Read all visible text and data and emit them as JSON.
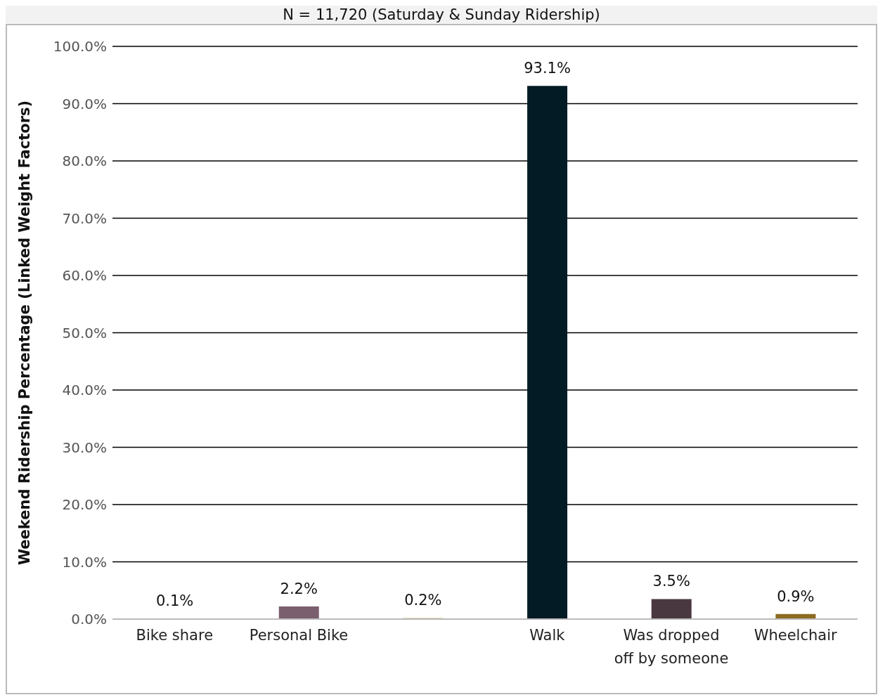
{
  "chart_data": {
    "type": "bar",
    "title": "N = 11,720 (Saturday & Sunday Ridership)",
    "ylabel": "Weekend Ridership Percentage (Linked Weight Factors)",
    "categories": [
      "Bike share",
      "Personal Bike",
      null,
      "Walk",
      "Was dropped off by someone",
      "Wheelchair"
    ],
    "values": [
      0.1,
      2.2,
      0.2,
      93.1,
      3.5,
      0.9
    ],
    "colors": [
      "#5b7b8c",
      "#7a5f6e",
      "#d8cfa6",
      "#021b24",
      "#4a3840",
      "#8c6a22"
    ],
    "value_labels": [
      "0.1%",
      "2.2%",
      "0.2%",
      "93.1%",
      "3.5%",
      "0.9%"
    ],
    "ylim": [
      0,
      100
    ],
    "yticks": [
      {
        "value": 0,
        "label": "0.0%"
      },
      {
        "value": 10,
        "label": "10.0%"
      },
      {
        "value": 20,
        "label": "20.0%"
      },
      {
        "value": 30,
        "label": "30.0%"
      },
      {
        "value": 40,
        "label": "40.0%"
      },
      {
        "value": 50,
        "label": "50.0%"
      },
      {
        "value": 60,
        "label": "60.0%"
      },
      {
        "value": 70,
        "label": "70.0%"
      },
      {
        "value": 80,
        "label": "80.0%"
      },
      {
        "value": 90,
        "label": "90.0%"
      },
      {
        "value": 100,
        "label": "100.0%"
      }
    ],
    "grid": "y",
    "legend": false
  }
}
